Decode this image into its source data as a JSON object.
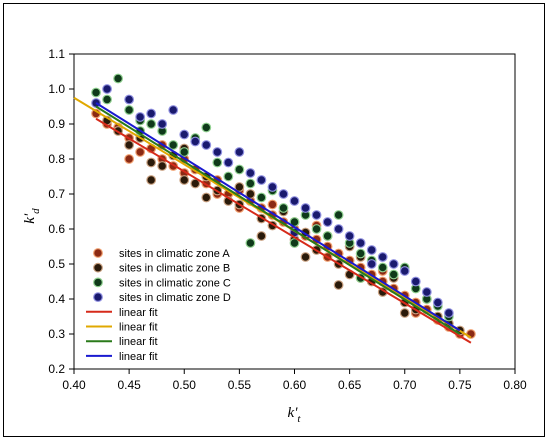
{
  "chart_data": {
    "type": "scatter",
    "xlabel": "k't",
    "xlabel_main": "k'",
    "xlabel_sub": "t",
    "ylabel": "k'd",
    "ylabel_main": "k'",
    "ylabel_sub": "d",
    "xlim": [
      0.4,
      0.8
    ],
    "ylim": [
      0.2,
      1.1
    ],
    "x_ticks": [
      "0.40",
      "0.45",
      "0.50",
      "0.55",
      "0.60",
      "0.65",
      "0.70",
      "0.75",
      "0.80"
    ],
    "y_ticks": [
      "0.2",
      "0.3",
      "0.4",
      "0.5",
      "0.6",
      "0.7",
      "0.8",
      "0.9",
      "1.0",
      "1.1"
    ],
    "grid": false,
    "legend_position": "bottom-left",
    "series": [
      {
        "name": "sites in climatic zone A",
        "kind": "scatter",
        "color": "#8b2a14",
        "edge_color": "#f0a070",
        "points": [
          [
            0.42,
            0.93
          ],
          [
            0.43,
            0.9
          ],
          [
            0.44,
            0.89
          ],
          [
            0.45,
            0.86
          ],
          [
            0.46,
            0.82
          ],
          [
            0.47,
            0.83
          ],
          [
            0.48,
            0.8
          ],
          [
            0.49,
            0.78
          ],
          [
            0.5,
            0.8
          ],
          [
            0.5,
            0.76
          ],
          [
            0.51,
            0.77
          ],
          [
            0.52,
            0.73
          ],
          [
            0.53,
            0.74
          ],
          [
            0.54,
            0.7
          ],
          [
            0.55,
            0.71
          ],
          [
            0.56,
            0.68
          ],
          [
            0.57,
            0.66
          ],
          [
            0.58,
            0.64
          ],
          [
            0.59,
            0.62
          ],
          [
            0.6,
            0.6
          ],
          [
            0.61,
            0.58
          ],
          [
            0.62,
            0.57
          ],
          [
            0.63,
            0.55
          ],
          [
            0.64,
            0.53
          ],
          [
            0.65,
            0.51
          ],
          [
            0.66,
            0.49
          ],
          [
            0.67,
            0.47
          ],
          [
            0.68,
            0.45
          ],
          [
            0.69,
            0.43
          ],
          [
            0.7,
            0.41
          ],
          [
            0.71,
            0.39
          ],
          [
            0.72,
            0.37
          ],
          [
            0.73,
            0.34
          ],
          [
            0.74,
            0.32
          ],
          [
            0.75,
            0.3
          ],
          [
            0.76,
            0.3
          ],
          [
            0.48,
            0.84
          ],
          [
            0.53,
            0.7
          ],
          [
            0.58,
            0.67
          ],
          [
            0.63,
            0.52
          ],
          [
            0.68,
            0.48
          ],
          [
            0.71,
            0.36
          ],
          [
            0.45,
            0.8
          ],
          [
            0.55,
            0.66
          ],
          [
            0.62,
            0.61
          ],
          [
            0.66,
            0.46
          ]
        ]
      },
      {
        "name": "sites in climatic zone B",
        "kind": "scatter",
        "color": "#2a1a0a",
        "edge_color": "#c8a080",
        "points": [
          [
            0.43,
            0.91
          ],
          [
            0.44,
            0.88
          ],
          [
            0.45,
            0.84
          ],
          [
            0.46,
            0.86
          ],
          [
            0.47,
            0.79
          ],
          [
            0.48,
            0.78
          ],
          [
            0.49,
            0.81
          ],
          [
            0.5,
            0.74
          ],
          [
            0.51,
            0.73
          ],
          [
            0.52,
            0.75
          ],
          [
            0.53,
            0.71
          ],
          [
            0.54,
            0.68
          ],
          [
            0.55,
            0.67
          ],
          [
            0.56,
            0.7
          ],
          [
            0.57,
            0.63
          ],
          [
            0.58,
            0.61
          ],
          [
            0.59,
            0.65
          ],
          [
            0.6,
            0.57
          ],
          [
            0.61,
            0.59
          ],
          [
            0.62,
            0.54
          ],
          [
            0.63,
            0.58
          ],
          [
            0.64,
            0.5
          ],
          [
            0.65,
            0.47
          ],
          [
            0.66,
            0.52
          ],
          [
            0.67,
            0.45
          ],
          [
            0.68,
            0.42
          ],
          [
            0.69,
            0.46
          ],
          [
            0.7,
            0.39
          ],
          [
            0.71,
            0.37
          ],
          [
            0.72,
            0.4
          ],
          [
            0.73,
            0.35
          ],
          [
            0.74,
            0.33
          ],
          [
            0.75,
            0.31
          ],
          [
            0.47,
            0.74
          ],
          [
            0.52,
            0.69
          ],
          [
            0.57,
            0.58
          ],
          [
            0.61,
            0.52
          ],
          [
            0.64,
            0.44
          ],
          [
            0.7,
            0.36
          ],
          [
            0.5,
            0.83
          ],
          [
            0.55,
            0.72
          ],
          [
            0.6,
            0.62
          ],
          [
            0.65,
            0.55
          ]
        ]
      },
      {
        "name": "sites in climatic zone C",
        "kind": "scatter",
        "color": "#0f3a1a",
        "edge_color": "#90d090",
        "points": [
          [
            0.42,
            0.99
          ],
          [
            0.43,
            0.97
          ],
          [
            0.44,
            1.03
          ],
          [
            0.45,
            0.94
          ],
          [
            0.46,
            0.91
          ],
          [
            0.47,
            0.9
          ],
          [
            0.48,
            0.88
          ],
          [
            0.49,
            0.84
          ],
          [
            0.5,
            0.82
          ],
          [
            0.51,
            0.86
          ],
          [
            0.52,
            0.89
          ],
          [
            0.53,
            0.79
          ],
          [
            0.54,
            0.75
          ],
          [
            0.55,
            0.77
          ],
          [
            0.56,
            0.73
          ],
          [
            0.57,
            0.69
          ],
          [
            0.58,
            0.71
          ],
          [
            0.59,
            0.66
          ],
          [
            0.6,
            0.62
          ],
          [
            0.61,
            0.64
          ],
          [
            0.62,
            0.6
          ],
          [
            0.63,
            0.58
          ],
          [
            0.64,
            0.64
          ],
          [
            0.65,
            0.56
          ],
          [
            0.66,
            0.53
          ],
          [
            0.67,
            0.51
          ],
          [
            0.68,
            0.49
          ],
          [
            0.69,
            0.47
          ],
          [
            0.7,
            0.49
          ],
          [
            0.71,
            0.43
          ],
          [
            0.72,
            0.4
          ],
          [
            0.73,
            0.38
          ],
          [
            0.74,
            0.35
          ],
          [
            0.56,
            0.56
          ],
          [
            0.6,
            0.56
          ],
          [
            0.66,
            0.46
          ],
          [
            0.46,
            0.88
          ]
        ]
      },
      {
        "name": "sites in climatic zone D",
        "kind": "scatter",
        "color": "#1a1a6e",
        "edge_color": "#9090e0",
        "points": [
          [
            0.42,
            0.96
          ],
          [
            0.43,
            1.0
          ],
          [
            0.45,
            0.97
          ],
          [
            0.46,
            0.92
          ],
          [
            0.47,
            0.93
          ],
          [
            0.48,
            0.9
          ],
          [
            0.49,
            0.94
          ],
          [
            0.5,
            0.87
          ],
          [
            0.51,
            0.85
          ],
          [
            0.52,
            0.84
          ],
          [
            0.53,
            0.82
          ],
          [
            0.54,
            0.79
          ],
          [
            0.55,
            0.82
          ],
          [
            0.56,
            0.76
          ],
          [
            0.57,
            0.74
          ],
          [
            0.58,
            0.72
          ],
          [
            0.59,
            0.7
          ],
          [
            0.6,
            0.68
          ],
          [
            0.61,
            0.66
          ],
          [
            0.62,
            0.64
          ],
          [
            0.63,
            0.62
          ],
          [
            0.64,
            0.6
          ],
          [
            0.65,
            0.58
          ],
          [
            0.66,
            0.56
          ],
          [
            0.67,
            0.54
          ],
          [
            0.68,
            0.52
          ],
          [
            0.69,
            0.5
          ],
          [
            0.7,
            0.48
          ],
          [
            0.71,
            0.45
          ],
          [
            0.72,
            0.42
          ],
          [
            0.73,
            0.39
          ],
          [
            0.74,
            0.36
          ],
          [
            0.6,
            0.59
          ],
          [
            0.67,
            0.5
          ]
        ]
      },
      {
        "name": "linear fit",
        "kind": "line",
        "color": "#d62a1a",
        "x": [
          0.42,
          0.76
        ],
        "y": [
          0.915,
          0.275
        ]
      },
      {
        "name": "linear fit",
        "kind": "line",
        "color": "#e0a800",
        "x": [
          0.4,
          0.76
        ],
        "y": [
          0.975,
          0.29
        ]
      },
      {
        "name": "linear fit",
        "kind": "line",
        "color": "#2a7a1a",
        "x": [
          0.42,
          0.75
        ],
        "y": [
          0.95,
          0.3
        ]
      },
      {
        "name": "linear fit",
        "kind": "line",
        "color": "#1a1ad0",
        "x": [
          0.42,
          0.75
        ],
        "y": [
          0.96,
          0.31
        ]
      }
    ]
  }
}
